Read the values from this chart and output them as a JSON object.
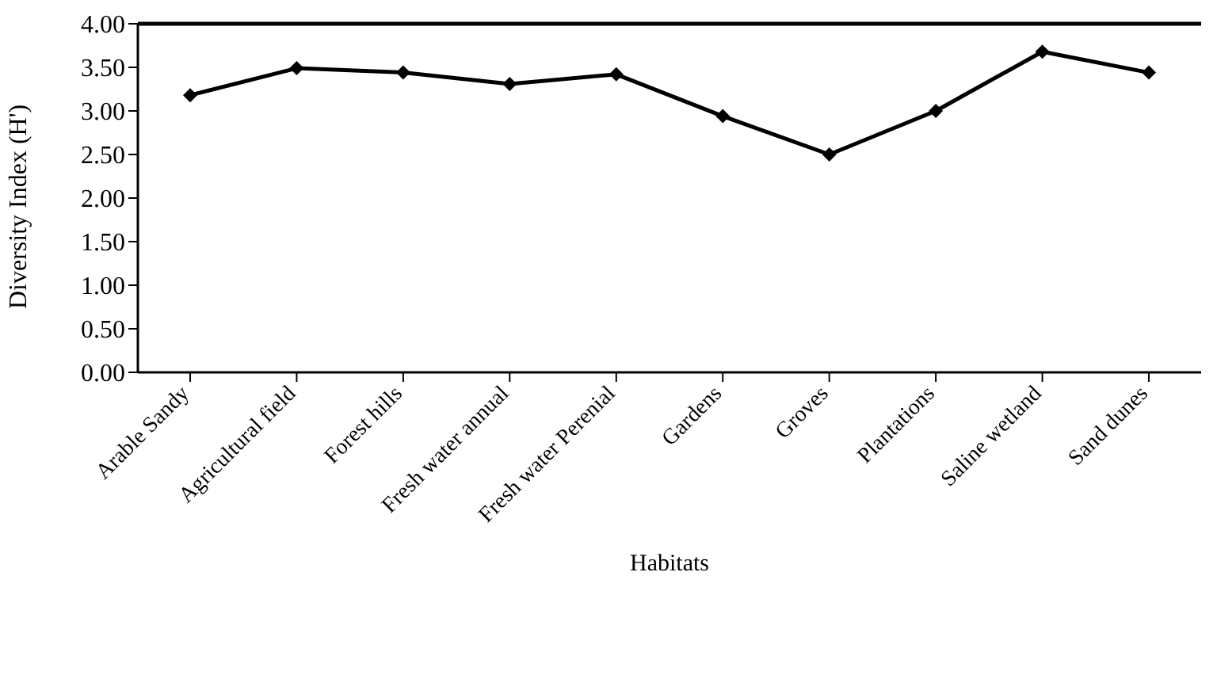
{
  "chart_data": {
    "type": "line",
    "xlabel": "Habitats",
    "ylabel": "Diversity Index (H')",
    "categories": [
      "Arable Sandy",
      "Agricultural field",
      "Forest hills",
      "Fresh water annual",
      "Fresh water Perenial",
      "Gardens",
      "Groves",
      "Plantations",
      "Saline wetland",
      "Sand dunes"
    ],
    "series": [
      {
        "color": "#000000",
        "values": [
          3.18,
          3.49,
          3.44,
          3.31,
          3.42,
          2.94,
          2.5,
          3.0,
          3.68,
          3.44
        ]
      }
    ],
    "ylim": [
      0,
      4
    ],
    "yticks": [
      {
        "value": 0,
        "label": "0.00"
      },
      {
        "value": 0.5,
        "label": "0.50"
      },
      {
        "value": 1,
        "label": "1.00"
      },
      {
        "value": 1.5,
        "label": "1.50"
      },
      {
        "value": 2,
        "label": "2.00"
      },
      {
        "value": 2.5,
        "label": "2.50"
      },
      {
        "value": 3,
        "label": "3.00"
      },
      {
        "value": 3.5,
        "label": "3.50"
      },
      {
        "value": 4,
        "label": "4.00"
      }
    ],
    "grid": false,
    "legend": false,
    "marker": "diamond",
    "line_style": "solid"
  }
}
